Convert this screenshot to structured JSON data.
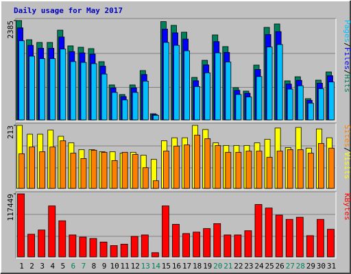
{
  "chart_data": {
    "type": "bar",
    "title": "Daily usage for May 2017",
    "categories": [
      "1",
      "2",
      "3",
      "4",
      "5",
      "6",
      "7",
      "8",
      "9",
      "10",
      "11",
      "12",
      "13",
      "14",
      "15",
      "16",
      "17",
      "18",
      "19",
      "20",
      "21",
      "22",
      "23",
      "24",
      "25",
      "26",
      "27",
      "28",
      "29",
      "30",
      "31"
    ],
    "highlighted": [
      5,
      6,
      12,
      13,
      19,
      20,
      26,
      27
    ],
    "highlight_color": "#00805c",
    "category_color": "#000000",
    "legend_separator": "/",
    "panels": [
      {
        "ylim": [
          0,
          2385
        ],
        "yticks": [
          2385
        ],
        "series": [
          {
            "name": "Hits",
            "color": "#00805c",
            "values": [
              2385,
              1925,
              1859,
              1859,
              2155,
              1777,
              1744,
              1711,
              1398,
              839,
              609,
              839,
              1184,
              148,
              2360,
              2270,
              2106,
              1020,
              1431,
              2040,
              1760,
              773,
              691,
              1316,
              2221,
              2303,
              938,
              1036,
              510,
              954,
              1151
            ]
          },
          {
            "name": "Files",
            "color": "#0000ff",
            "values": [
              2210,
              1790,
              1720,
              1720,
              1990,
              1640,
              1610,
              1580,
              1290,
              770,
              560,
              770,
              1090,
              130,
              2180,
              2090,
              1940,
              940,
              1320,
              1880,
              1620,
              710,
              640,
              1210,
              2050,
              2120,
              860,
              950,
              470,
              880,
              1060
            ]
          },
          {
            "name": "Pages",
            "color": "#00c0ff",
            "values": [
              1900,
              1530,
              1470,
              1470,
              1700,
              1400,
              1380,
              1350,
              1100,
              660,
              480,
              660,
              930,
              110,
              1860,
              1790,
              1660,
              800,
              1130,
              1610,
              1390,
              610,
              550,
              1040,
              1750,
              1810,
              740,
              820,
              400,
              750,
              910
            ]
          }
        ]
      },
      {
        "ylim": [
          0,
          213
        ],
        "yticks": [
          213
        ],
        "series": [
          {
            "name": "Visits",
            "color": "#ffff00",
            "values": [
              213,
              183,
              183,
              197,
              176,
              154,
              131,
              131,
              124,
              124,
              119,
              122,
              112,
              98,
              161,
              171,
              171,
              213,
              199,
              154,
              145,
              145,
              145,
              154,
              166,
              204,
              138,
              206,
              136,
              201,
              171
            ]
          },
          {
            "name": "Sites",
            "color": "#ff8000",
            "values": [
              117,
              140,
              124,
              140,
              161,
              119,
              101,
              129,
              122,
              94,
              122,
              115,
              70,
              26,
              126,
              143,
              147,
              180,
              168,
              145,
              122,
              122,
              126,
              126,
              105,
              126,
              131,
              131,
              119,
              152,
              136
            ]
          }
        ]
      },
      {
        "ylim": [
          0,
          117449
        ],
        "yticks": [
          117449
        ],
        "series": [
          {
            "name": "KBytes",
            "color": "#ff0000",
            "values": [
              117449,
              42227,
              50145,
              95011,
              67300,
              40908,
              36949,
              34310,
              27712,
              21114,
              23753,
              38268,
              40908,
              7918,
              95011,
              60702,
              43547,
              46186,
              52784,
              62021,
              40908,
              40908,
              48825,
              97650,
              91052,
              77856,
              69938,
              73897,
              39588,
              69938,
              51464
            ]
          }
        ]
      }
    ]
  }
}
